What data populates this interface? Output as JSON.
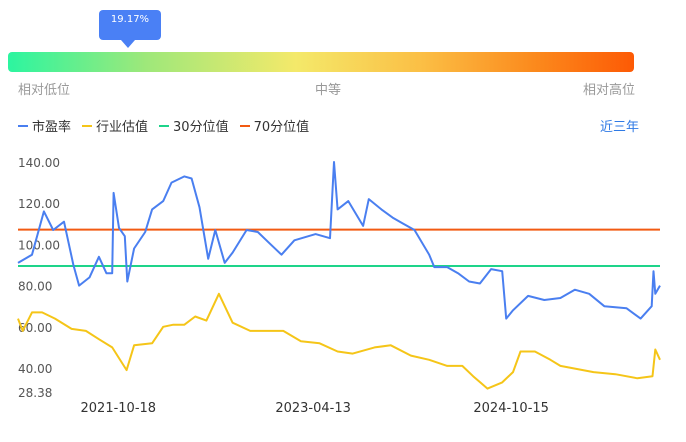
{
  "gauge": {
    "percentile_label": "19.17%",
    "percentile": 19.17,
    "low_label": "相对低位",
    "mid_label": "中等",
    "high_label": "相对高位"
  },
  "legend": {
    "items": [
      {
        "label": "市盈率",
        "color": "#4a7ff0"
      },
      {
        "label": "行业估值",
        "color": "#f5c518"
      },
      {
        "label": "30分位值",
        "color": "#1ed48a"
      },
      {
        "label": "70分位值",
        "color": "#f25a12"
      }
    ]
  },
  "range_label": "近三年",
  "chart_data": {
    "type": "line",
    "y_ticks": [
      "140.00",
      "120.00",
      "100.00",
      "80.00",
      "60.00",
      "40.00",
      "28.38"
    ],
    "y_tick_values": [
      140,
      120,
      100,
      80,
      60,
      40,
      28.38
    ],
    "ylim": [
      28.38,
      148
    ],
    "x_tick_labels": [
      "2021-10-18",
      "2023-04-13",
      "2024-10-15"
    ],
    "xlim": [
      "2021-01-12",
      "2025-12-03"
    ],
    "reference_lines": [
      {
        "name": "30分位值",
        "value": 89.5,
        "color": "#1ed48a"
      },
      {
        "name": "70分位值",
        "value": 107.2,
        "color": "#f25a12"
      }
    ],
    "series": [
      {
        "name": "市盈率",
        "color": "#4a7ff0",
        "points": [
          [
            "2021-01-12",
            91
          ],
          [
            "2021-02-20",
            95
          ],
          [
            "2021-03-25",
            116
          ],
          [
            "2021-04-20",
            107
          ],
          [
            "2021-05-20",
            111
          ],
          [
            "2021-06-15",
            90
          ],
          [
            "2021-07-01",
            80
          ],
          [
            "2021-07-30",
            84
          ],
          [
            "2021-08-25",
            94
          ],
          [
            "2021-09-15",
            86
          ],
          [
            "2021-10-01",
            86
          ],
          [
            "2021-10-05",
            125
          ],
          [
            "2021-10-20",
            108
          ],
          [
            "2021-11-05",
            104
          ],
          [
            "2021-11-12",
            82
          ],
          [
            "2021-12-01",
            98
          ],
          [
            "2022-01-01",
            106
          ],
          [
            "2022-01-20",
            117
          ],
          [
            "2022-02-20",
            121
          ],
          [
            "2022-03-15",
            130
          ],
          [
            "2022-04-20",
            133
          ],
          [
            "2022-05-10",
            132
          ],
          [
            "2022-06-01",
            118
          ],
          [
            "2022-06-25",
            93
          ],
          [
            "2022-07-15",
            107
          ],
          [
            "2022-08-10",
            91
          ],
          [
            "2022-09-01",
            96
          ],
          [
            "2022-10-10",
            107
          ],
          [
            "2022-11-10",
            106
          ],
          [
            "2022-12-10",
            101
          ],
          [
            "2023-01-15",
            95
          ],
          [
            "2023-02-20",
            102
          ],
          [
            "2023-04-20",
            105
          ],
          [
            "2023-05-30",
            103
          ],
          [
            "2023-06-10",
            140
          ],
          [
            "2023-06-20",
            117
          ],
          [
            "2023-07-20",
            121
          ],
          [
            "2023-08-30",
            109
          ],
          [
            "2023-09-15",
            122
          ],
          [
            "2023-10-20",
            117
          ],
          [
            "2023-11-20",
            113
          ],
          [
            "2023-12-20",
            110
          ],
          [
            "2024-01-20",
            107
          ],
          [
            "2024-03-01",
            95
          ],
          [
            "2024-03-15",
            89
          ],
          [
            "2024-04-20",
            89
          ],
          [
            "2024-05-20",
            86
          ],
          [
            "2024-06-20",
            82
          ],
          [
            "2024-07-20",
            81
          ],
          [
            "2024-08-20",
            88
          ],
          [
            "2024-09-20",
            87
          ],
          [
            "2024-10-01",
            64
          ],
          [
            "2024-10-20",
            68
          ],
          [
            "2024-12-01",
            75
          ],
          [
            "2025-01-15",
            73
          ],
          [
            "2025-03-01",
            74
          ],
          [
            "2025-04-10",
            78
          ],
          [
            "2025-05-20",
            76
          ],
          [
            "2025-07-01",
            70
          ],
          [
            "2025-09-01",
            69
          ],
          [
            "2025-10-10",
            64
          ],
          [
            "2025-11-10",
            70
          ],
          [
            "2025-11-15",
            87
          ],
          [
            "2025-11-20",
            76
          ],
          [
            "2025-12-03",
            80
          ]
        ]
      },
      {
        "name": "行业估值",
        "color": "#f5c518",
        "points": [
          [
            "2021-01-12",
            64
          ],
          [
            "2021-01-25",
            58
          ],
          [
            "2021-02-20",
            67
          ],
          [
            "2021-03-20",
            67
          ],
          [
            "2021-04-25",
            64
          ],
          [
            "2021-06-10",
            59
          ],
          [
            "2021-07-20",
            58
          ],
          [
            "2021-08-25",
            54
          ],
          [
            "2021-10-01",
            50
          ],
          [
            "2021-11-10",
            39
          ],
          [
            "2021-12-01",
            51
          ],
          [
            "2022-01-20",
            52
          ],
          [
            "2022-02-20",
            60
          ],
          [
            "2022-03-20",
            61
          ],
          [
            "2022-04-20",
            61
          ],
          [
            "2022-05-20",
            65
          ],
          [
            "2022-06-20",
            63
          ],
          [
            "2022-07-25",
            76
          ],
          [
            "2022-09-01",
            62
          ],
          [
            "2022-10-20",
            58
          ],
          [
            "2022-12-01",
            58
          ],
          [
            "2023-01-20",
            58
          ],
          [
            "2023-03-10",
            53
          ],
          [
            "2023-05-01",
            52
          ],
          [
            "2023-06-20",
            48
          ],
          [
            "2023-08-01",
            47
          ],
          [
            "2023-10-01",
            50
          ],
          [
            "2023-11-15",
            51
          ],
          [
            "2024-01-10",
            46
          ],
          [
            "2024-03-01",
            44
          ],
          [
            "2024-04-20",
            41
          ],
          [
            "2024-06-01",
            41
          ],
          [
            "2024-07-01",
            36
          ],
          [
            "2024-08-10",
            30
          ],
          [
            "2024-09-20",
            33
          ],
          [
            "2024-10-20",
            38
          ],
          [
            "2024-11-10",
            48
          ],
          [
            "2024-12-20",
            48
          ],
          [
            "2025-02-01",
            44
          ],
          [
            "2025-03-01",
            41
          ],
          [
            "2025-06-01",
            38
          ],
          [
            "2025-08-01",
            37
          ],
          [
            "2025-10-01",
            35
          ],
          [
            "2025-11-12",
            36
          ],
          [
            "2025-11-20",
            49
          ],
          [
            "2025-12-03",
            44
          ]
        ]
      }
    ]
  }
}
